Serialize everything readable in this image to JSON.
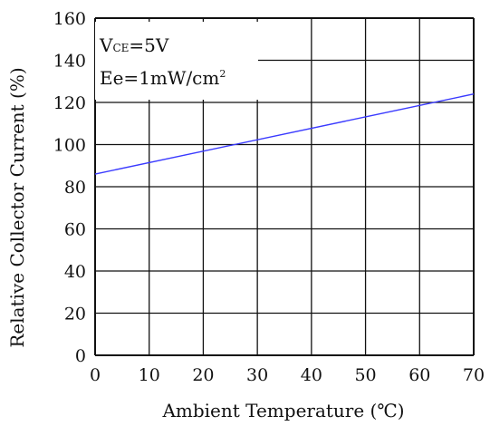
{
  "chart_data": {
    "type": "line",
    "x": [
      0,
      70
    ],
    "series": [
      {
        "values": [
          86,
          124
        ],
        "color": "#3a3aff"
      }
    ],
    "xlim": [
      0,
      70
    ],
    "ylim": [
      0,
      160
    ],
    "xticks": [
      "0",
      "10",
      "20",
      "30",
      "40",
      "50",
      "60",
      "70"
    ],
    "yticks": [
      "0",
      "20",
      "40",
      "60",
      "80",
      "100",
      "120",
      "140",
      "160"
    ],
    "xlabel": "Ambient Temperature (℃)",
    "ylabel": "Relative Collector  Current (%)",
    "grid": true,
    "annotations": {
      "vce_prefix": "V",
      "vce_sub": "CE",
      "vce_value": "=5V",
      "ee_main": "Ee=1mW/cm",
      "ee_sup": "2"
    }
  }
}
